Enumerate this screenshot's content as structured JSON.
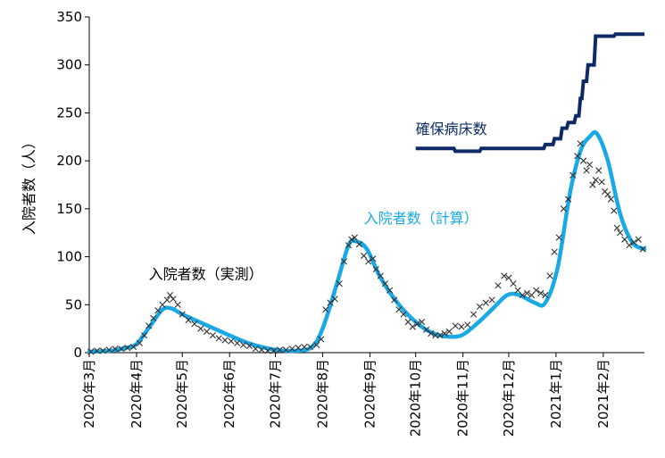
{
  "chart_data": {
    "type": "line",
    "ylabel": "入院者数（人）",
    "ylim": [
      0,
      350
    ],
    "yticks": [
      0,
      50,
      100,
      150,
      200,
      250,
      300,
      350
    ],
    "x_start": "2020-03-01",
    "x_end": "2021-02-28",
    "xticks": [
      "2020-03-01",
      "2020-04-01",
      "2020-05-01",
      "2020-06-01",
      "2020-07-01",
      "2020-08-01",
      "2020-09-01",
      "2020-10-01",
      "2020-11-01",
      "2020-12-01",
      "2021-01-01",
      "2021-02-01"
    ],
    "xtick_labels": [
      "2020年3月",
      "2020年4月",
      "2020年5月",
      "2020年6月",
      "2020年7月",
      "2020年8月",
      "2020年9月",
      "2020年10月",
      "2020年11月",
      "2020年12月",
      "2021年1月",
      "2021年2月"
    ],
    "grid": false,
    "series": [
      {
        "name": "確保病床数",
        "color": "#0d2a66",
        "style": "step",
        "points": [
          [
            "2020-10-01",
            213
          ],
          [
            "2020-10-26",
            213
          ],
          [
            "2020-10-27",
            210
          ],
          [
            "2020-11-12",
            210
          ],
          [
            "2020-11-13",
            213
          ],
          [
            "2020-12-24",
            213
          ],
          [
            "2020-12-25",
            217
          ],
          [
            "2020-12-30",
            217
          ],
          [
            "2020-12-31",
            223
          ],
          [
            "2021-01-04",
            223
          ],
          [
            "2021-01-05",
            234
          ],
          [
            "2021-01-08",
            234
          ],
          [
            "2021-01-09",
            240
          ],
          [
            "2021-01-13",
            240
          ],
          [
            "2021-01-14",
            247
          ],
          [
            "2021-01-16",
            247
          ],
          [
            "2021-01-17",
            265
          ],
          [
            "2021-01-18",
            265
          ],
          [
            "2021-01-19",
            283
          ],
          [
            "2021-01-21",
            283
          ],
          [
            "2021-01-22",
            300
          ],
          [
            "2021-01-26",
            300
          ],
          [
            "2021-01-27",
            330
          ],
          [
            "2021-02-08",
            330
          ],
          [
            "2021-02-09",
            332
          ],
          [
            "2021-02-28",
            332
          ]
        ]
      },
      {
        "name": "入院者数（計算）",
        "color": "#19a9e6",
        "style": "line",
        "points": [
          [
            "2020-03-01",
            1
          ],
          [
            "2020-03-15",
            2
          ],
          [
            "2020-03-25",
            5
          ],
          [
            "2020-04-01",
            9
          ],
          [
            "2020-04-10",
            28
          ],
          [
            "2020-04-18",
            45
          ],
          [
            "2020-04-24",
            46
          ],
          [
            "2020-05-01",
            40
          ],
          [
            "2020-05-15",
            30
          ],
          [
            "2020-06-01",
            18
          ],
          [
            "2020-06-15",
            9
          ],
          [
            "2020-07-01",
            3
          ],
          [
            "2020-07-15",
            2
          ],
          [
            "2020-07-25",
            6
          ],
          [
            "2020-08-01",
            25
          ],
          [
            "2020-08-10",
            70
          ],
          [
            "2020-08-18",
            112
          ],
          [
            "2020-08-23",
            116
          ],
          [
            "2020-08-30",
            108
          ],
          [
            "2020-09-08",
            78
          ],
          [
            "2020-09-20",
            50
          ],
          [
            "2020-10-01",
            32
          ],
          [
            "2020-10-10",
            22
          ],
          [
            "2020-10-20",
            17
          ],
          [
            "2020-10-31",
            18
          ],
          [
            "2020-11-10",
            30
          ],
          [
            "2020-11-20",
            45
          ],
          [
            "2020-11-30",
            60
          ],
          [
            "2020-12-08",
            60
          ],
          [
            "2020-12-18",
            52
          ],
          [
            "2020-12-25",
            52
          ],
          [
            "2021-01-02",
            88
          ],
          [
            "2021-01-10",
            165
          ],
          [
            "2021-01-17",
            210
          ],
          [
            "2021-01-23",
            225
          ],
          [
            "2021-01-28",
            228
          ],
          [
            "2021-02-04",
            200
          ],
          [
            "2021-02-12",
            145
          ],
          [
            "2021-02-20",
            115
          ],
          [
            "2021-02-28",
            108
          ]
        ]
      },
      {
        "name": "入院者数（実測）",
        "color": "#303030",
        "style": "markers",
        "points": [
          [
            "2020-03-02",
            1
          ],
          [
            "2020-03-06",
            2
          ],
          [
            "2020-03-10",
            2
          ],
          [
            "2020-03-14",
            3
          ],
          [
            "2020-03-18",
            4
          ],
          [
            "2020-03-22",
            4
          ],
          [
            "2020-03-26",
            5
          ],
          [
            "2020-03-30",
            6
          ],
          [
            "2020-04-03",
            10
          ],
          [
            "2020-04-06",
            18
          ],
          [
            "2020-04-09",
            28
          ],
          [
            "2020-04-12",
            36
          ],
          [
            "2020-04-15",
            44
          ],
          [
            "2020-04-18",
            50
          ],
          [
            "2020-04-21",
            55
          ],
          [
            "2020-04-23",
            60
          ],
          [
            "2020-04-25",
            56
          ],
          [
            "2020-04-28",
            50
          ],
          [
            "2020-05-01",
            40
          ],
          [
            "2020-05-05",
            34
          ],
          [
            "2020-05-09",
            30
          ],
          [
            "2020-05-13",
            25
          ],
          [
            "2020-05-17",
            22
          ],
          [
            "2020-05-21",
            18
          ],
          [
            "2020-05-25",
            15
          ],
          [
            "2020-05-29",
            13
          ],
          [
            "2020-06-02",
            12
          ],
          [
            "2020-06-06",
            10
          ],
          [
            "2020-06-10",
            8
          ],
          [
            "2020-06-14",
            7
          ],
          [
            "2020-06-18",
            4
          ],
          [
            "2020-06-22",
            3
          ],
          [
            "2020-06-26",
            2
          ],
          [
            "2020-06-30",
            2
          ],
          [
            "2020-07-04",
            3
          ],
          [
            "2020-07-08",
            3
          ],
          [
            "2020-07-12",
            4
          ],
          [
            "2020-07-16",
            5
          ],
          [
            "2020-07-20",
            6
          ],
          [
            "2020-07-24",
            6
          ],
          [
            "2020-07-28",
            8
          ],
          [
            "2020-07-31",
            14
          ],
          [
            "2020-08-03",
            45
          ],
          [
            "2020-08-06",
            52
          ],
          [
            "2020-08-09",
            56
          ],
          [
            "2020-08-12",
            72
          ],
          [
            "2020-08-15",
            95
          ],
          [
            "2020-08-18",
            112
          ],
          [
            "2020-08-20",
            118
          ],
          [
            "2020-08-22",
            120
          ],
          [
            "2020-08-25",
            113
          ],
          [
            "2020-08-28",
            101
          ],
          [
            "2020-08-31",
            95
          ],
          [
            "2020-09-03",
            98
          ],
          [
            "2020-09-05",
            87
          ],
          [
            "2020-09-08",
            80
          ],
          [
            "2020-09-11",
            72
          ],
          [
            "2020-09-14",
            65
          ],
          [
            "2020-09-17",
            55
          ],
          [
            "2020-09-20",
            45
          ],
          [
            "2020-09-23",
            40
          ],
          [
            "2020-09-26",
            32
          ],
          [
            "2020-09-29",
            27
          ],
          [
            "2020-10-02",
            30
          ],
          [
            "2020-10-05",
            32
          ],
          [
            "2020-10-08",
            24
          ],
          [
            "2020-10-11",
            20
          ],
          [
            "2020-10-14",
            18
          ],
          [
            "2020-10-17",
            18
          ],
          [
            "2020-10-20",
            20
          ],
          [
            "2020-10-23",
            22
          ],
          [
            "2020-10-27",
            28
          ],
          [
            "2020-10-31",
            27
          ],
          [
            "2020-11-04",
            29
          ],
          [
            "2020-11-08",
            40
          ],
          [
            "2020-11-12",
            48
          ],
          [
            "2020-11-16",
            52
          ],
          [
            "2020-11-20",
            55
          ],
          [
            "2020-11-24",
            70
          ],
          [
            "2020-11-28",
            80
          ],
          [
            "2020-12-01",
            78
          ],
          [
            "2020-12-04",
            72
          ],
          [
            "2020-12-07",
            65
          ],
          [
            "2020-12-10",
            60
          ],
          [
            "2020-12-13",
            62
          ],
          [
            "2020-12-16",
            60
          ],
          [
            "2020-12-19",
            65
          ],
          [
            "2020-12-22",
            62
          ],
          [
            "2020-12-25",
            60
          ],
          [
            "2020-12-28",
            80
          ],
          [
            "2020-12-31",
            105
          ],
          [
            "2021-01-03",
            120
          ],
          [
            "2021-01-06",
            150
          ],
          [
            "2021-01-09",
            160
          ],
          [
            "2021-01-12",
            185
          ],
          [
            "2021-01-15",
            205
          ],
          [
            "2021-01-17",
            218
          ],
          [
            "2021-01-19",
            200
          ],
          [
            "2021-01-21",
            190
          ],
          [
            "2021-01-23",
            196
          ],
          [
            "2021-01-25",
            175
          ],
          [
            "2021-01-27",
            180
          ],
          [
            "2021-01-29",
            190
          ],
          [
            "2021-01-31",
            178
          ],
          [
            "2021-02-02",
            168
          ],
          [
            "2021-02-04",
            165
          ],
          [
            "2021-02-06",
            160
          ],
          [
            "2021-02-08",
            148
          ],
          [
            "2021-02-10",
            130
          ],
          [
            "2021-02-12",
            125
          ],
          [
            "2021-02-15",
            118
          ],
          [
            "2021-02-18",
            112
          ],
          [
            "2021-02-21",
            115
          ],
          [
            "2021-02-24",
            118
          ],
          [
            "2021-02-27",
            108
          ]
        ]
      }
    ],
    "annotations": [
      {
        "text": "確保病床数",
        "color": "#0d2a66",
        "x": "2020-10-01",
        "y": 228
      },
      {
        "text": "入院者数（計算）",
        "color": "#19a9e6",
        "x": "2020-08-28",
        "y": 135
      },
      {
        "text": "入院者数（実測）",
        "color": "#000000",
        "x": "2020-04-09",
        "y": 77
      }
    ]
  }
}
